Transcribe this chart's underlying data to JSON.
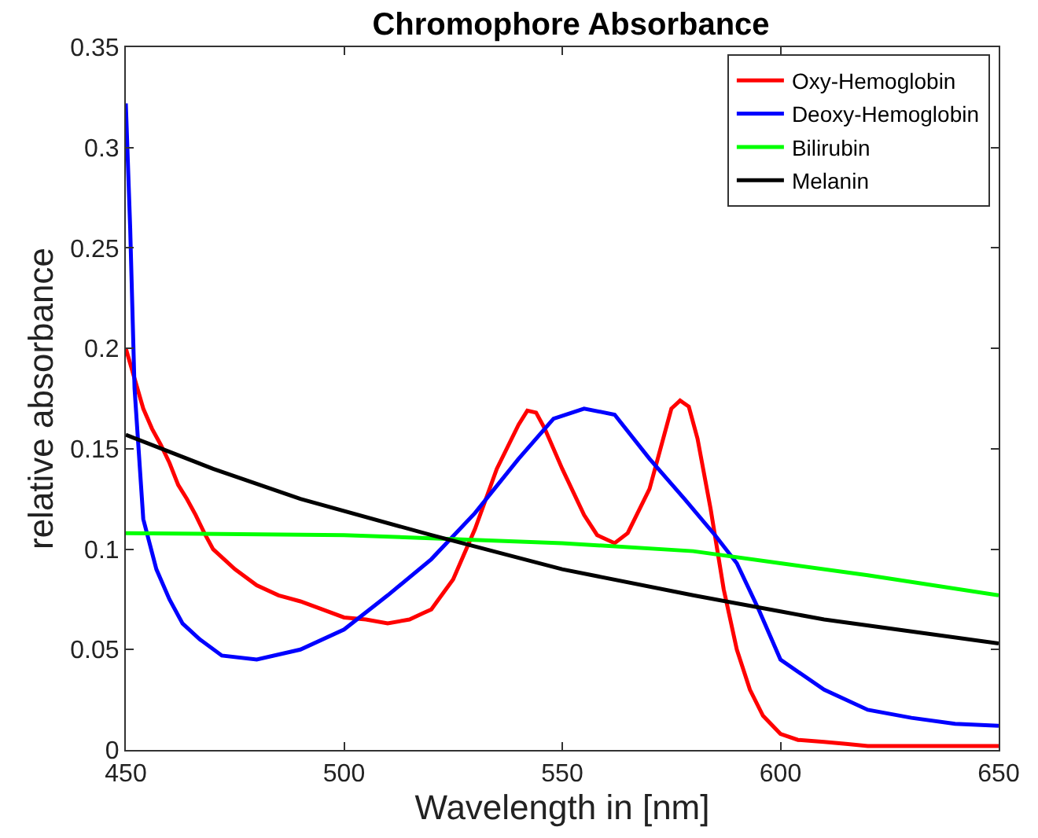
{
  "chart_data": {
    "type": "line",
    "title": "Chromophore Absorbance",
    "xlabel": "Wavelength in [nm]",
    "ylabel": "relative absorbance",
    "xlim": [
      450,
      650
    ],
    "xticks": [
      450,
      500,
      550,
      600,
      650
    ],
    "ylim": [
      0,
      0.35
    ],
    "yticks": [
      0,
      0.05,
      0.1,
      0.15,
      0.2,
      0.25,
      0.3,
      0.35
    ],
    "grid": false,
    "legend": "top right",
    "marker": "none",
    "line_style": "solid",
    "series": [
      {
        "name": "Oxy-Hemoglobin",
        "color": "#ff0000",
        "x": [
          450,
          452,
          454,
          456,
          458,
          460,
          462,
          464,
          466,
          468,
          470,
          475,
          480,
          485,
          490,
          495,
          500,
          505,
          510,
          515,
          518,
          520,
          525,
          530,
          535,
          540,
          542,
          544,
          546,
          550,
          555,
          558,
          562,
          565,
          570,
          575,
          577,
          579,
          581,
          584,
          587,
          590,
          593,
          596,
          600,
          604,
          610,
          615,
          620,
          650
        ],
        "values": [
          0.2,
          0.185,
          0.17,
          0.16,
          0.152,
          0.143,
          0.132,
          0.125,
          0.117,
          0.108,
          0.1,
          0.09,
          0.082,
          0.077,
          0.074,
          0.07,
          0.066,
          0.065,
          0.063,
          0.065,
          0.068,
          0.07,
          0.085,
          0.11,
          0.14,
          0.162,
          0.169,
          0.168,
          0.16,
          0.14,
          0.117,
          0.107,
          0.103,
          0.108,
          0.13,
          0.17,
          0.174,
          0.171,
          0.155,
          0.12,
          0.08,
          0.05,
          0.03,
          0.017,
          0.008,
          0.005,
          0.004,
          0.003,
          0.002,
          0.002
        ]
      },
      {
        "name": "Deoxy-Hemoglobin",
        "color": "#0000ff",
        "x": [
          450,
          451,
          452,
          454,
          457,
          460,
          463,
          467,
          472,
          480,
          490,
          500,
          510,
          520,
          530,
          540,
          548,
          555,
          562,
          570,
          578,
          585,
          590,
          595,
          600,
          610,
          620,
          630,
          640,
          650
        ],
        "values": [
          0.322,
          0.26,
          0.18,
          0.115,
          0.09,
          0.075,
          0.063,
          0.055,
          0.047,
          0.045,
          0.05,
          0.06,
          0.077,
          0.095,
          0.118,
          0.145,
          0.165,
          0.17,
          0.167,
          0.145,
          0.125,
          0.107,
          0.093,
          0.07,
          0.045,
          0.03,
          0.02,
          0.016,
          0.013,
          0.012
        ]
      },
      {
        "name": "Bilirubin",
        "color": "#00ff00",
        "x": [
          450,
          500,
          550,
          580,
          600,
          620,
          650
        ],
        "values": [
          0.108,
          0.107,
          0.103,
          0.099,
          0.093,
          0.087,
          0.077
        ]
      },
      {
        "name": "Melanin",
        "color": "#000000",
        "x": [
          450,
          470,
          490,
          520,
          550,
          580,
          600,
          610,
          630,
          650
        ],
        "values": [
          0.157,
          0.14,
          0.125,
          0.107,
          0.09,
          0.077,
          0.069,
          0.065,
          0.059,
          0.053
        ]
      }
    ]
  }
}
